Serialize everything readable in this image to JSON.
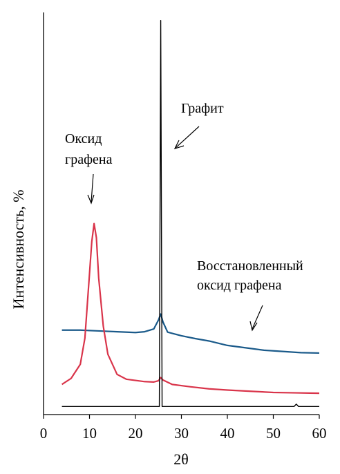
{
  "chart_data": {
    "type": "line",
    "title": "",
    "xlabel": "2θ",
    "ylabel": "Интенсивность, %",
    "xlim": [
      0,
      60
    ],
    "ylim": [
      0,
      100
    ],
    "x_ticks": [
      "0",
      "10",
      "20",
      "30",
      "40",
      "50",
      "60"
    ],
    "grid": false,
    "legend": "none",
    "series": [
      {
        "color": "#1a5a8a",
        "points": [
          [
            4,
            21
          ],
          [
            8,
            21
          ],
          [
            12,
            20.8
          ],
          [
            16,
            20.6
          ],
          [
            20,
            20.4
          ],
          [
            22,
            20.6
          ],
          [
            24,
            21.3
          ],
          [
            25,
            23.5
          ],
          [
            25.5,
            25
          ],
          [
            26,
            23
          ],
          [
            27,
            20.5
          ],
          [
            30,
            19.6
          ],
          [
            33,
            18.9
          ],
          [
            36,
            18.3
          ],
          [
            40,
            17.2
          ],
          [
            44,
            16.6
          ],
          [
            48,
            16
          ],
          [
            52,
            15.7
          ],
          [
            56,
            15.4
          ],
          [
            60,
            15.3
          ]
        ]
      },
      {
        "color": "#d9344a",
        "points": [
          [
            4,
            7.5
          ],
          [
            6,
            9
          ],
          [
            8,
            12.5
          ],
          [
            9,
            19
          ],
          [
            10,
            35
          ],
          [
            10.5,
            43
          ],
          [
            11,
            47.5
          ],
          [
            11.5,
            44
          ],
          [
            12,
            34
          ],
          [
            13,
            22
          ],
          [
            14,
            15
          ],
          [
            16,
            10
          ],
          [
            18,
            8.8
          ],
          [
            22,
            8.2
          ],
          [
            24,
            8.1
          ],
          [
            25,
            8.4
          ],
          [
            25.5,
            9.2
          ],
          [
            26,
            8.6
          ],
          [
            28,
            7.5
          ],
          [
            32,
            6.9
          ],
          [
            36,
            6.4
          ],
          [
            40,
            6.1
          ],
          [
            45,
            5.8
          ],
          [
            50,
            5.5
          ],
          [
            55,
            5.4
          ],
          [
            60,
            5.3
          ]
        ]
      },
      {
        "color": "#000000",
        "points": [
          [
            4,
            2
          ],
          [
            24,
            2
          ],
          [
            25.2,
            2
          ],
          [
            25.5,
            98
          ],
          [
            25.8,
            2
          ],
          [
            27,
            2
          ],
          [
            54.5,
            2
          ],
          [
            55,
            2.6
          ],
          [
            55.5,
            2
          ],
          [
            60,
            2
          ]
        ]
      }
    ],
    "annotations": [
      {
        "lines": [
          "Оксид",
          "графена"
        ]
      },
      {
        "lines": [
          "Графит"
        ]
      },
      {
        "lines": [
          "Восстановленный",
          "оксид графена"
        ]
      }
    ]
  }
}
